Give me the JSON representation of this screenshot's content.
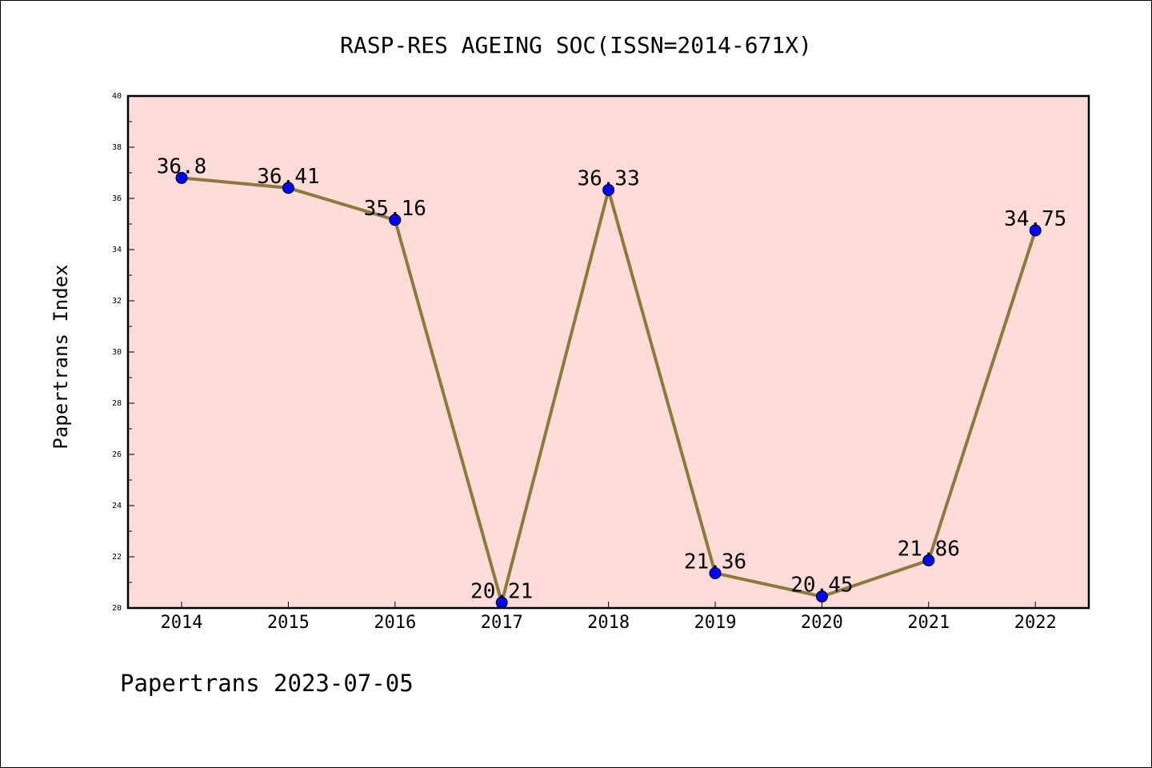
{
  "chart_data": {
    "type": "line",
    "title": "RASP-RES AGEING SOC(ISSN=2014-671X)",
    "xlabel": "",
    "ylabel": "Papertrans Index",
    "footer": "Papertrans 2023-07-05",
    "categories": [
      "2014",
      "2015",
      "2016",
      "2017",
      "2018",
      "2019",
      "2020",
      "2021",
      "2022"
    ],
    "series": [
      {
        "values": [
          36.8,
          36.41,
          35.16,
          20.21,
          36.33,
          21.36,
          20.45,
          21.86,
          34.75
        ],
        "labels": [
          "36.8",
          "36.41",
          "35.16",
          "20.21",
          "36.33",
          "21.36",
          "20.45",
          "21.86",
          "34.75"
        ]
      }
    ],
    "ylim": [
      20,
      40
    ],
    "yticks": [
      "20",
      "22",
      "24",
      "26",
      "28",
      "30",
      "32",
      "34",
      "36",
      "38",
      "40"
    ],
    "grid": false,
    "colors": {
      "plot_background": "#fddbd8",
      "line": "#8b7a3b",
      "marker": "#0000ff"
    }
  }
}
